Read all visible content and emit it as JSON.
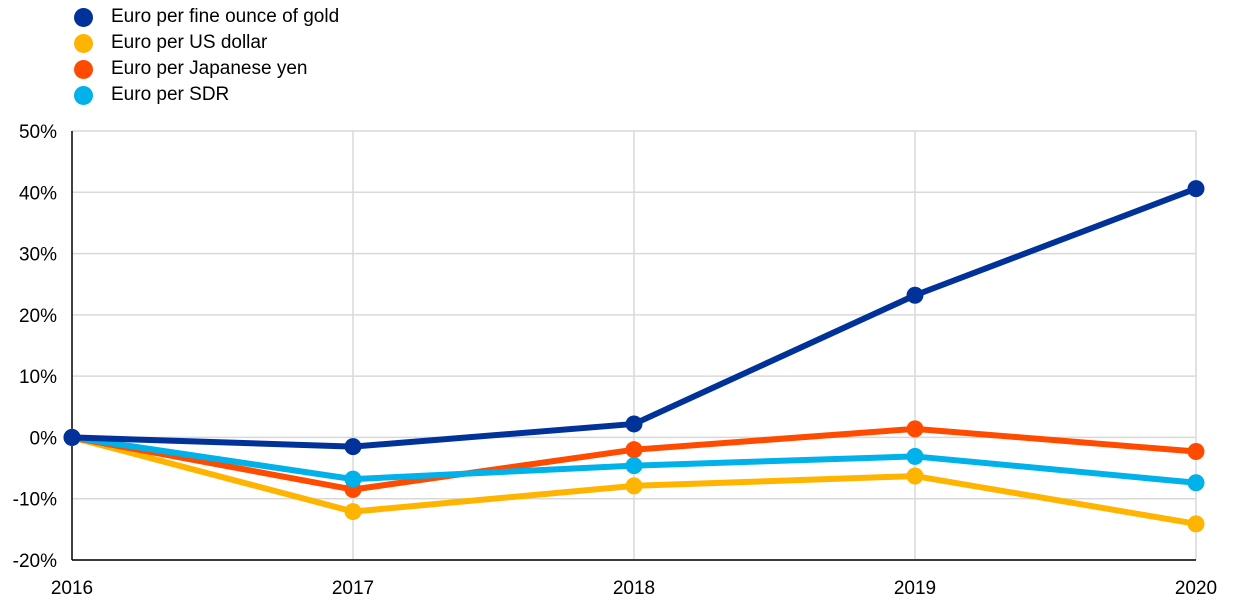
{
  "chart_data": {
    "type": "line",
    "categories": [
      "2016",
      "2017",
      "2018",
      "2019",
      "2020"
    ],
    "y_tick_labels": [
      "50%",
      "40%",
      "30%",
      "20%",
      "10%",
      "0%",
      "-10%",
      "-20%"
    ],
    "ylim": [
      -20,
      50
    ],
    "y_unit": "%",
    "grid": true,
    "legend_position": "top-left",
    "series": [
      {
        "name": "Euro per fine ounce of gold",
        "color": "#003299",
        "values": [
          0,
          -1.5,
          2.2,
          23.2,
          40.6
        ]
      },
      {
        "name": "Euro per US dollar",
        "color": "#FFB400",
        "values": [
          0,
          -12.1,
          -7.9,
          -6.3,
          -14.1
        ]
      },
      {
        "name": "Euro per Japanese yen",
        "color": "#FF4B00",
        "values": [
          0,
          -8.5,
          -2.0,
          1.4,
          -2.3
        ]
      },
      {
        "name": "Euro per SDR",
        "color": "#00B1EA",
        "values": [
          0,
          -6.8,
          -4.6,
          -3.1,
          -7.4
        ]
      }
    ]
  }
}
